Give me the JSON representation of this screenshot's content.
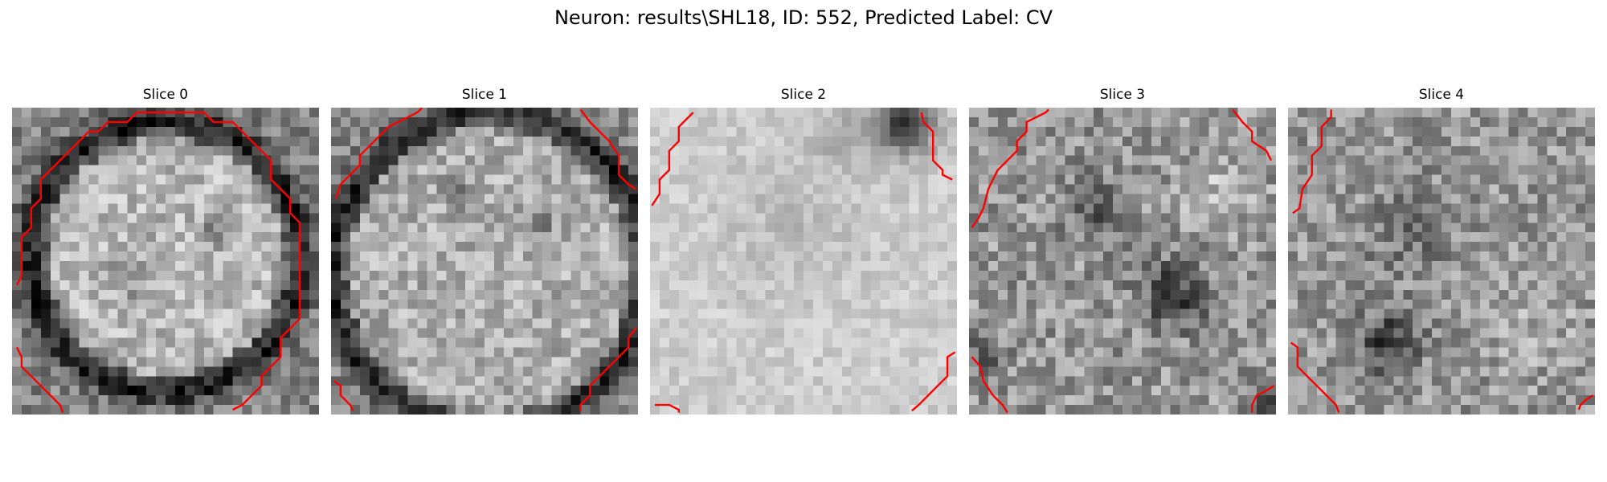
{
  "figure": {
    "title": "Neuron: results\\SHL18, ID: 552, Predicted Label: CV"
  },
  "panels": [
    {
      "title": "Slice 0"
    },
    {
      "title": "Slice 1"
    },
    {
      "title": "Slice 2"
    },
    {
      "title": "Slice 3"
    },
    {
      "title": "Slice 4"
    }
  ],
  "colors": {
    "contour": "#ff0000",
    "colormap": "gray"
  }
}
